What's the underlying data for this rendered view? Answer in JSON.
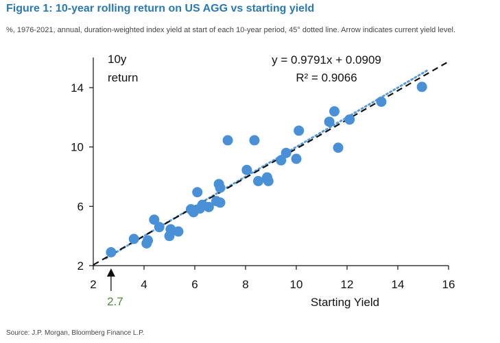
{
  "figure": {
    "title": "Figure 1: 10-year rolling return on US AGG vs starting yield",
    "subtitle": "%, 1976-2021, annual, duration-weighted index yield at start of each 10-year period, 45° dotted line. Arrow indicates current yield level.",
    "source": "Source: J.P. Morgan, Bloomberg Finance L.P."
  },
  "colors": {
    "title": "#2a79b5",
    "point": "#4a90d6",
    "regression_line": "#111111",
    "diagonal_line": "#5a9bd8",
    "current_yield_label": "#4e8a3a",
    "text": "#111111"
  },
  "chart_data": {
    "type": "scatter",
    "xlabel": "Starting Yield",
    "ylabel_lines": [
      "10y",
      "return"
    ],
    "xlim": [
      2,
      16
    ],
    "ylim": [
      2,
      17
    ],
    "xticks": [
      2,
      4,
      6,
      8,
      10,
      12,
      14,
      16
    ],
    "yticks": [
      2,
      6,
      10,
      14
    ],
    "grid": false,
    "equation": "y = 0.9791x + 0.0909",
    "r_squared": "R² = 0.9066",
    "regression": {
      "slope": 0.9791,
      "intercept": 0.0909,
      "style": "dashed"
    },
    "diagonal": {
      "slope": 1,
      "intercept": 0,
      "style": "dotted",
      "description": "45° dotted line"
    },
    "current_yield": {
      "value": 2.7,
      "label": "2.7",
      "marker": "arrow"
    },
    "points": [
      {
        "x": 2.7,
        "y": 2.9
      },
      {
        "x": 3.6,
        "y": 3.8
      },
      {
        "x": 4.1,
        "y": 3.5
      },
      {
        "x": 4.15,
        "y": 3.7
      },
      {
        "x": 4.4,
        "y": 5.1
      },
      {
        "x": 4.6,
        "y": 4.6
      },
      {
        "x": 5.0,
        "y": 4.0
      },
      {
        "x": 5.05,
        "y": 4.45
      },
      {
        "x": 5.35,
        "y": 4.3
      },
      {
        "x": 5.85,
        "y": 5.8
      },
      {
        "x": 5.95,
        "y": 5.6
      },
      {
        "x": 6.1,
        "y": 6.95
      },
      {
        "x": 6.2,
        "y": 5.85
      },
      {
        "x": 6.3,
        "y": 6.1
      },
      {
        "x": 6.55,
        "y": 5.95
      },
      {
        "x": 6.85,
        "y": 6.35
      },
      {
        "x": 6.95,
        "y": 7.5
      },
      {
        "x": 7.0,
        "y": 7.25
      },
      {
        "x": 7.0,
        "y": 6.25
      },
      {
        "x": 7.3,
        "y": 10.45
      },
      {
        "x": 8.05,
        "y": 8.45
      },
      {
        "x": 8.35,
        "y": 10.45
      },
      {
        "x": 8.5,
        "y": 7.7
      },
      {
        "x": 8.85,
        "y": 7.95
      },
      {
        "x": 8.9,
        "y": 7.7
      },
      {
        "x": 9.4,
        "y": 9.1
      },
      {
        "x": 9.6,
        "y": 9.6
      },
      {
        "x": 10.0,
        "y": 9.2
      },
      {
        "x": 10.1,
        "y": 11.1
      },
      {
        "x": 11.3,
        "y": 11.7
      },
      {
        "x": 11.5,
        "y": 12.4
      },
      {
        "x": 11.65,
        "y": 9.95
      },
      {
        "x": 12.1,
        "y": 11.85
      },
      {
        "x": 13.35,
        "y": 13.05
      },
      {
        "x": 14.95,
        "y": 14.05
      }
    ]
  }
}
